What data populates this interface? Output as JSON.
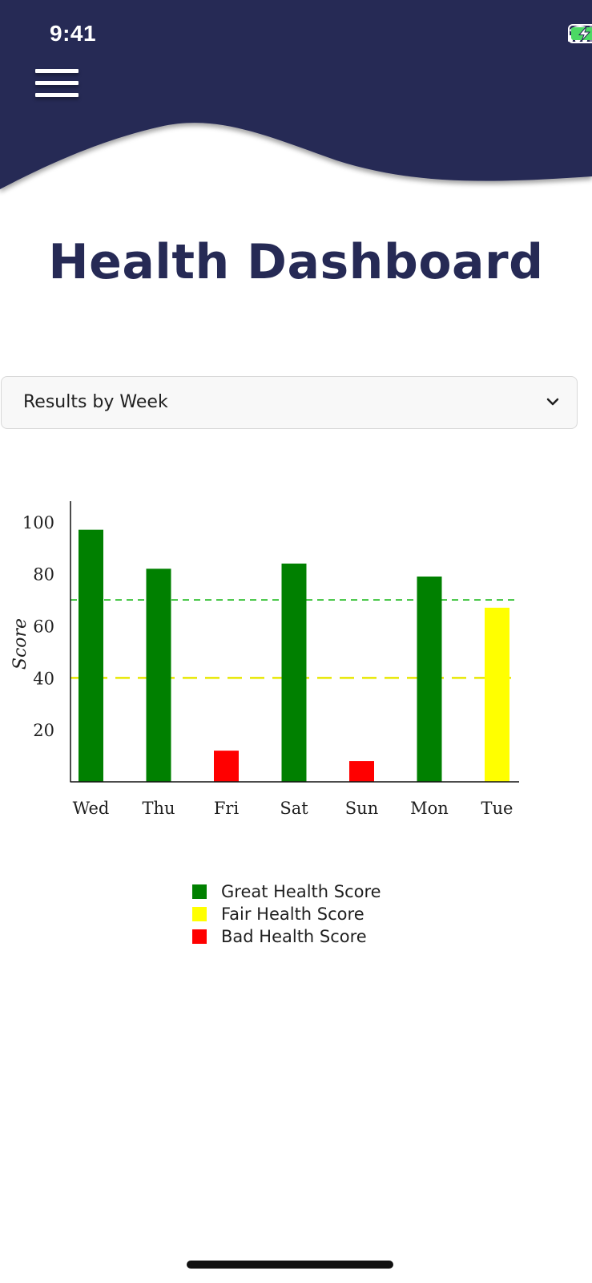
{
  "status_bar": {
    "time": "9:41",
    "icons": [
      "cellular-signal-icon",
      "wifi-icon",
      "battery-charging-icon"
    ]
  },
  "header": {
    "menu_icon": "hamburger-menu-icon",
    "background_color": "#262954"
  },
  "page": {
    "title": "Health Dashboard"
  },
  "filter": {
    "selected": "Results by Week",
    "icon": "chevron-down-icon"
  },
  "chart_data": {
    "type": "bar",
    "categories": [
      "Wed",
      "Thu",
      "Fri",
      "Sat",
      "Sun",
      "Mon",
      "Tue"
    ],
    "values": [
      97,
      82,
      12,
      84,
      8,
      79,
      67
    ],
    "bar_colors": [
      "#008000",
      "#008000",
      "#ff0000",
      "#008000",
      "#ff0000",
      "#008000",
      "#ffff00"
    ],
    "ylabel": "Score",
    "ylim": [
      0,
      108
    ],
    "yticks": [
      "20",
      "40",
      "60",
      "80",
      "100"
    ],
    "thresholds": [
      {
        "value": 70,
        "color": "#22bb22"
      },
      {
        "value": 40,
        "color": "#e8e800"
      }
    ],
    "legend": [
      {
        "label": "Great Health Score",
        "color": "#008000"
      },
      {
        "label": "Fair Health Score",
        "color": "#ffff00"
      },
      {
        "label": "Bad Health Score",
        "color": "#ff0000"
      }
    ],
    "legend_position": "bottom-center"
  }
}
